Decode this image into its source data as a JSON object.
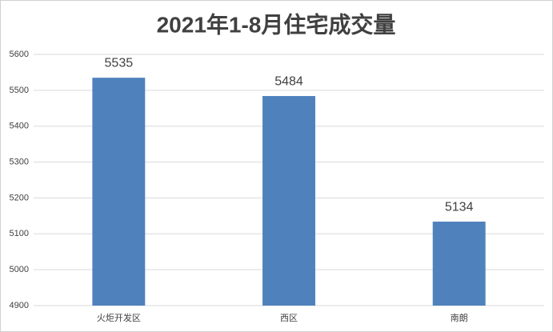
{
  "chart_data": {
    "type": "bar",
    "title": "2021年1-8月住宅成交量",
    "categories": [
      "火炬开发区",
      "西区",
      "南朗"
    ],
    "values": [
      5535,
      5484,
      5134
    ],
    "color": "#4f81bd",
    "ylim": [
      4900,
      5600
    ],
    "yticks": [
      4900,
      5000,
      5100,
      5200,
      5300,
      5400,
      5500,
      5600
    ],
    "grid": true
  }
}
